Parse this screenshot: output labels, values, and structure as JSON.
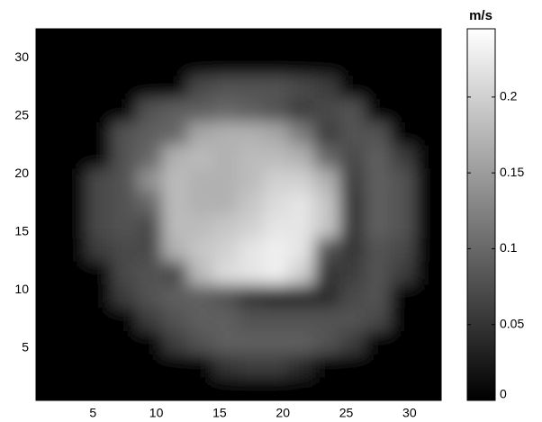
{
  "chart_data": {
    "type": "heatmap",
    "colorbar_label": "m/s",
    "colormap": "gray",
    "x": [
      1.5,
      3.5,
      5.5,
      7.5,
      9.5,
      11.5,
      13.5,
      15.5,
      17.5,
      19.5,
      21.5,
      23.5,
      25.5,
      27.5,
      29.5,
      31.5
    ],
    "y": [
      1.5,
      3.5,
      5.5,
      7.5,
      9.5,
      11.5,
      13.5,
      15.5,
      17.5,
      19.5,
      21.5,
      23.5,
      25.5,
      27.5,
      29.5,
      31.5
    ],
    "z": [
      [
        0,
        0,
        0,
        0,
        0,
        0,
        0,
        0,
        0,
        0,
        0,
        0,
        0,
        0,
        0,
        0
      ],
      [
        0,
        0,
        0,
        0,
        0,
        0,
        0,
        0.05,
        0.06,
        0.06,
        0.04,
        0,
        0,
        0,
        0,
        0
      ],
      [
        0,
        0,
        0,
        0,
        0,
        0.06,
        0.08,
        0.09,
        0.09,
        0.09,
        0.09,
        0.08,
        0.06,
        0,
        0,
        0
      ],
      [
        0,
        0,
        0,
        0,
        0.06,
        0.08,
        0.09,
        0.09,
        0.08,
        0.08,
        0.08,
        0.08,
        0.08,
        0.07,
        0,
        0
      ],
      [
        0,
        0,
        0,
        0.06,
        0.08,
        0.09,
        0.09,
        0.08,
        0.05,
        0.04,
        0.04,
        0.04,
        0.07,
        0.08,
        0,
        0
      ],
      [
        0,
        0,
        0,
        0.07,
        0.08,
        0.07,
        0.18,
        0.21,
        0.22,
        0.23,
        0.2,
        0.05,
        0.06,
        0.08,
        0.06,
        0
      ],
      [
        0,
        0,
        0.06,
        0.07,
        0.07,
        0.17,
        0.19,
        0.2,
        0.22,
        0.23,
        0.22,
        0.08,
        0.05,
        0.08,
        0.07,
        0
      ],
      [
        0,
        0,
        0.07,
        0.08,
        0.07,
        0.18,
        0.18,
        0.19,
        0.2,
        0.22,
        0.22,
        0.19,
        0.05,
        0.09,
        0.08,
        0
      ],
      [
        0,
        0,
        0.07,
        0.08,
        0.1,
        0.18,
        0.17,
        0.17,
        0.19,
        0.21,
        0.22,
        0.19,
        0.05,
        0.09,
        0.08,
        0
      ],
      [
        0,
        0,
        0.07,
        0.08,
        0.14,
        0.18,
        0.17,
        0.17,
        0.18,
        0.2,
        0.2,
        0.17,
        0.06,
        0.09,
        0.08,
        0
      ],
      [
        0,
        0,
        0,
        0.08,
        0.1,
        0.17,
        0.18,
        0.17,
        0.18,
        0.18,
        0.17,
        0.1,
        0.07,
        0.09,
        0.06,
        0
      ],
      [
        0,
        0,
        0,
        0.08,
        0.09,
        0.1,
        0.16,
        0.17,
        0.17,
        0.16,
        0.12,
        0.06,
        0.08,
        0.08,
        0,
        0
      ],
      [
        0,
        0,
        0,
        0,
        0.08,
        0.09,
        0.09,
        0.1,
        0.09,
        0.08,
        0.06,
        0.07,
        0.08,
        0,
        0,
        0
      ],
      [
        0,
        0,
        0,
        0,
        0,
        0,
        0.07,
        0.08,
        0.08,
        0.08,
        0.07,
        0.06,
        0,
        0,
        0,
        0
      ],
      [
        0,
        0,
        0,
        0,
        0,
        0,
        0,
        0,
        0,
        0,
        0,
        0,
        0,
        0,
        0,
        0
      ],
      [
        0,
        0,
        0,
        0,
        0,
        0,
        0,
        0,
        0,
        0,
        0,
        0,
        0,
        0,
        0,
        0
      ]
    ],
    "xlim": [
      0.5,
      32.5
    ],
    "xticks": [
      5,
      10,
      15,
      20,
      25,
      30
    ],
    "ylim": [
      0.5,
      32.5
    ],
    "yticks": [
      5,
      10,
      15,
      20,
      25,
      30
    ],
    "clim": [
      0,
      0.245
    ],
    "cticks": [
      0,
      0.05,
      0.1,
      0.15,
      0.2
    ]
  }
}
